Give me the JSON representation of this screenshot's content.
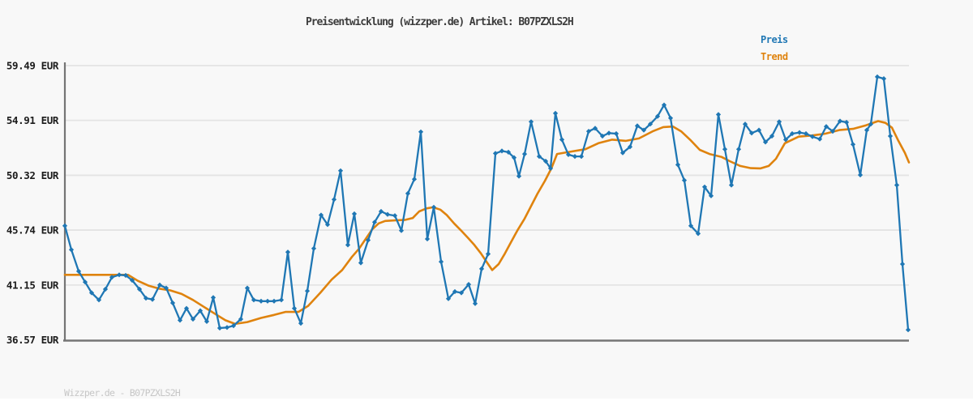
{
  "header": {
    "title": "Preisentwicklung (wizzper.de) Artikel: B07PZXLS2H"
  },
  "footer": {
    "label": "Wizzper.de - B07PZXLS2H"
  },
  "chart_data": {
    "type": "line",
    "title": "Preisentwicklung (wizzper.de) Artikel: B07PZXLS2H",
    "xlabel": "",
    "ylabel": "EUR",
    "ylim": [
      36.57,
      59.49
    ],
    "grid": true,
    "legend_position": "top-right",
    "colors": {
      "grid": "#e4e4e4",
      "axis": "#757575",
      "tick_text": "#1b1b1b",
      "background": "#f8f8f8"
    },
    "y_ticks": [
      {
        "value": 59.49,
        "label": "59.49 EUR"
      },
      {
        "value": 54.91,
        "label": "54.91 EUR"
      },
      {
        "value": 50.32,
        "label": "50.32 EUR"
      },
      {
        "value": 45.74,
        "label": "45.74 EUR"
      },
      {
        "value": 41.15,
        "label": "41.15 EUR"
      },
      {
        "value": 36.57,
        "label": "36.57 EUR"
      }
    ],
    "series": [
      {
        "name": "Preis",
        "color": "#1f77b4",
        "width": 2.3,
        "marker": "diamond",
        "points": [
          [
            80,
            46.1
          ],
          [
            88,
            44.1
          ],
          [
            97,
            42.3
          ],
          [
            105,
            41.4
          ],
          [
            113,
            40.5
          ],
          [
            122,
            39.9
          ],
          [
            130,
            40.8
          ],
          [
            138,
            41.8
          ],
          [
            147,
            42.0
          ],
          [
            155,
            41.95
          ],
          [
            163,
            41.55
          ],
          [
            172,
            40.8
          ],
          [
            180,
            40.05
          ],
          [
            188,
            39.95
          ],
          [
            197,
            41.15
          ],
          [
            205,
            40.9
          ],
          [
            213,
            39.65
          ],
          [
            222,
            38.2
          ],
          [
            230,
            39.2
          ],
          [
            238,
            38.3
          ],
          [
            247,
            39.0
          ],
          [
            255,
            38.1
          ],
          [
            263,
            40.1
          ],
          [
            271,
            37.55
          ],
          [
            280,
            37.6
          ],
          [
            288,
            37.75
          ],
          [
            297,
            38.3
          ],
          [
            305,
            40.9
          ],
          [
            313,
            39.9
          ],
          [
            322,
            39.8
          ],
          [
            330,
            39.8
          ],
          [
            338,
            39.8
          ],
          [
            347,
            39.9
          ],
          [
            355,
            43.9
          ],
          [
            363,
            39.2
          ],
          [
            371,
            37.95
          ],
          [
            379,
            40.65
          ],
          [
            387,
            44.2
          ],
          [
            396,
            47.0
          ],
          [
            404,
            46.2
          ],
          [
            412,
            48.3
          ],
          [
            420,
            50.7
          ],
          [
            429,
            44.5
          ],
          [
            437,
            47.1
          ],
          [
            445,
            43.0
          ],
          [
            454,
            44.9
          ],
          [
            462,
            46.4
          ],
          [
            470,
            47.3
          ],
          [
            478,
            47.05
          ],
          [
            487,
            46.95
          ],
          [
            495,
            45.7
          ],
          [
            503,
            48.8
          ],
          [
            511,
            50.0
          ],
          [
            519,
            53.95
          ],
          [
            527,
            45.0
          ],
          [
            535,
            47.65
          ],
          [
            544,
            43.1
          ],
          [
            553,
            40.0
          ],
          [
            561,
            40.6
          ],
          [
            569,
            40.5
          ],
          [
            578,
            41.2
          ],
          [
            586,
            39.6
          ],
          [
            594,
            42.5
          ],
          [
            602,
            43.75
          ],
          [
            611,
            52.15
          ],
          [
            619,
            52.35
          ],
          [
            627,
            52.25
          ],
          [
            634,
            51.8
          ],
          [
            640,
            50.25
          ],
          [
            647,
            52.1
          ],
          [
            655,
            54.8
          ],
          [
            665,
            51.9
          ],
          [
            673,
            51.5
          ],
          [
            679,
            50.9
          ],
          [
            685,
            55.5
          ],
          [
            693,
            53.3
          ],
          [
            701,
            52.05
          ],
          [
            709,
            51.9
          ],
          [
            717,
            51.9
          ],
          [
            726,
            54.0
          ],
          [
            734,
            54.25
          ],
          [
            743,
            53.6
          ],
          [
            751,
            53.85
          ],
          [
            760,
            53.8
          ],
          [
            768,
            52.2
          ],
          [
            777,
            52.7
          ],
          [
            786,
            54.45
          ],
          [
            794,
            54.1
          ],
          [
            802,
            54.6
          ],
          [
            811,
            55.25
          ],
          [
            819,
            56.2
          ],
          [
            827,
            55.1
          ],
          [
            836,
            51.2
          ],
          [
            844,
            49.9
          ],
          [
            852,
            46.1
          ],
          [
            861,
            45.45
          ],
          [
            869,
            49.35
          ],
          [
            877,
            48.6
          ],
          [
            886,
            55.4
          ],
          [
            894,
            52.5
          ],
          [
            902,
            49.5
          ],
          [
            911,
            52.5
          ],
          [
            919,
            54.6
          ],
          [
            927,
            53.85
          ],
          [
            936,
            54.1
          ],
          [
            944,
            53.1
          ],
          [
            952,
            53.6
          ],
          [
            961,
            54.8
          ],
          [
            969,
            53.3
          ],
          [
            977,
            53.8
          ],
          [
            986,
            53.9
          ],
          [
            994,
            53.8
          ],
          [
            1002,
            53.55
          ],
          [
            1011,
            53.35
          ],
          [
            1019,
            54.4
          ],
          [
            1027,
            54.0
          ],
          [
            1036,
            54.85
          ],
          [
            1044,
            54.75
          ],
          [
            1052,
            52.9
          ],
          [
            1061,
            50.35
          ],
          [
            1069,
            54.1
          ],
          [
            1074,
            54.6
          ],
          [
            1082,
            58.55
          ],
          [
            1090,
            58.4
          ],
          [
            1098,
            53.6
          ],
          [
            1106,
            49.5
          ],
          [
            1113,
            42.9
          ],
          [
            1120,
            37.4
          ]
        ]
      },
      {
        "name": "Trend",
        "color": "#df830e",
        "width": 2.6,
        "marker": "none",
        "points": [
          [
            80,
            42.0
          ],
          [
            120,
            42.0
          ],
          [
            158,
            42.0
          ],
          [
            170,
            41.5
          ],
          [
            183,
            41.1
          ],
          [
            196,
            40.85
          ],
          [
            210,
            40.7
          ],
          [
            224,
            40.4
          ],
          [
            238,
            39.9
          ],
          [
            252,
            39.3
          ],
          [
            265,
            38.75
          ],
          [
            278,
            38.2
          ],
          [
            290,
            37.9
          ],
          [
            305,
            38.05
          ],
          [
            322,
            38.4
          ],
          [
            338,
            38.65
          ],
          [
            352,
            38.9
          ],
          [
            368,
            38.9
          ],
          [
            380,
            39.4
          ],
          [
            395,
            40.5
          ],
          [
            409,
            41.6
          ],
          [
            422,
            42.4
          ],
          [
            434,
            43.5
          ],
          [
            443,
            44.2
          ],
          [
            451,
            45.0
          ],
          [
            459,
            45.8
          ],
          [
            467,
            46.3
          ],
          [
            475,
            46.5
          ],
          [
            487,
            46.55
          ],
          [
            500,
            46.6
          ],
          [
            509,
            46.75
          ],
          [
            517,
            47.3
          ],
          [
            526,
            47.55
          ],
          [
            534,
            47.65
          ],
          [
            543,
            47.45
          ],
          [
            551,
            47.0
          ],
          [
            560,
            46.3
          ],
          [
            568,
            45.75
          ],
          [
            577,
            45.1
          ],
          [
            585,
            44.5
          ],
          [
            593,
            43.8
          ],
          [
            600,
            43.1
          ],
          [
            607,
            42.4
          ],
          [
            615,
            42.9
          ],
          [
            622,
            43.7
          ],
          [
            630,
            44.7
          ],
          [
            638,
            45.7
          ],
          [
            647,
            46.7
          ],
          [
            655,
            47.75
          ],
          [
            663,
            48.8
          ],
          [
            672,
            49.85
          ],
          [
            680,
            50.9
          ],
          [
            687,
            52.1
          ],
          [
            700,
            52.25
          ],
          [
            722,
            52.5
          ],
          [
            738,
            53.0
          ],
          [
            755,
            53.3
          ],
          [
            772,
            53.2
          ],
          [
            788,
            53.4
          ],
          [
            805,
            54.0
          ],
          [
            818,
            54.35
          ],
          [
            830,
            54.4
          ],
          [
            840,
            54.0
          ],
          [
            851,
            53.3
          ],
          [
            863,
            52.45
          ],
          [
            875,
            52.1
          ],
          [
            890,
            51.85
          ],
          [
            900,
            51.5
          ],
          [
            913,
            51.1
          ],
          [
            926,
            50.92
          ],
          [
            938,
            50.9
          ],
          [
            948,
            51.1
          ],
          [
            957,
            51.7
          ],
          [
            968,
            53.0
          ],
          [
            985,
            53.55
          ],
          [
            1002,
            53.65
          ],
          [
            1018,
            53.8
          ],
          [
            1035,
            54.1
          ],
          [
            1052,
            54.2
          ],
          [
            1068,
            54.5
          ],
          [
            1083,
            54.85
          ],
          [
            1092,
            54.7
          ],
          [
            1100,
            54.3
          ],
          [
            1108,
            53.2
          ],
          [
            1116,
            52.2
          ],
          [
            1121,
            51.4
          ]
        ]
      }
    ]
  }
}
